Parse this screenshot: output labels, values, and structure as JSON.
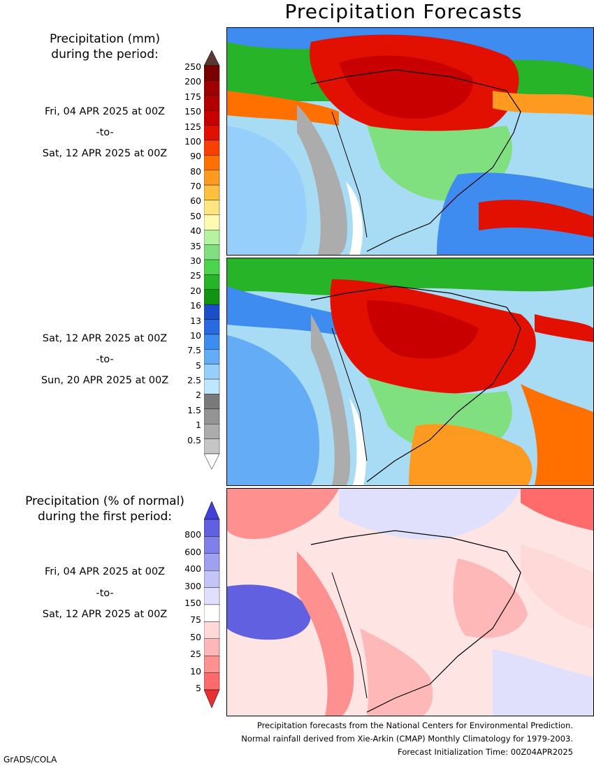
{
  "title": "Precipitation Forecasts",
  "legend_mm": {
    "heading_line1": "Precipitation (mm)",
    "heading_line2": "during the period:",
    "ticks": [
      "250",
      "200",
      "175",
      "150",
      "125",
      "100",
      "90",
      "80",
      "70",
      "60",
      "50",
      "40",
      "35",
      "30",
      "25",
      "20",
      "16",
      "13",
      "10",
      "7.5",
      "5",
      "2.5",
      "2",
      "1.5",
      "1",
      "0.5"
    ],
    "colors": [
      "#7a0000",
      "#9e0000",
      "#b00000",
      "#c80000",
      "#e21000",
      "#f84000",
      "#ff7000",
      "#ff9a20",
      "#ffc040",
      "#ffe580",
      "#fffab0",
      "#b6f2a0",
      "#80e080",
      "#4cd44c",
      "#28b428",
      "#129412",
      "#1a4dc8",
      "#2a6ae0",
      "#3e8cf0",
      "#64acf6",
      "#96cffa",
      "#bfe6fc",
      "#7a7a7a",
      "#949494",
      "#acacac",
      "#c6c6c6"
    ],
    "top_arrow_color": "#5a3830",
    "bottom_arrow_color": "#ffffff"
  },
  "period1": {
    "date_from": "Fri, 04 APR 2025 at 00Z",
    "to": "-to-",
    "date_to": "Sat, 12 APR 2025 at 00Z"
  },
  "period2": {
    "date_from": "Sat, 12 APR 2025 at 00Z",
    "to": "-to-",
    "date_to": "Sun, 20 APR 2025 at 00Z"
  },
  "legend_pct": {
    "heading_line1": "Precipitation (% of normal)",
    "heading_line2": "during the first period:",
    "ticks": [
      "800",
      "600",
      "400",
      "300",
      "150",
      "75",
      "50",
      "25",
      "10",
      "5"
    ],
    "colors": [
      "#6060e0",
      "#8080ea",
      "#a0a0f0",
      "#c4c4f6",
      "#e0e0fc",
      "#ffffff",
      "#ffd8d8",
      "#ffb8b8",
      "#ff9090",
      "#ff6a6a"
    ],
    "top_arrow_color": "#4040d8",
    "bottom_arrow_color": "#e83030"
  },
  "period3": {
    "date_from": "Fri, 04 APR 2025 at 00Z",
    "to": "-to-",
    "date_to": "Sat, 12 APR 2025 at 00Z"
  },
  "footer": {
    "line1": "Precipitation forecasts from the National Centers for Environmental Prediction.",
    "line2": "Normal rainfall derived from Xie-Arkin (CMAP) Monthly Climatology for 1979-2003.",
    "line3": "Forecast Initialization Time: 00Z04APR2025"
  },
  "credit": "GrADS/COLA"
}
